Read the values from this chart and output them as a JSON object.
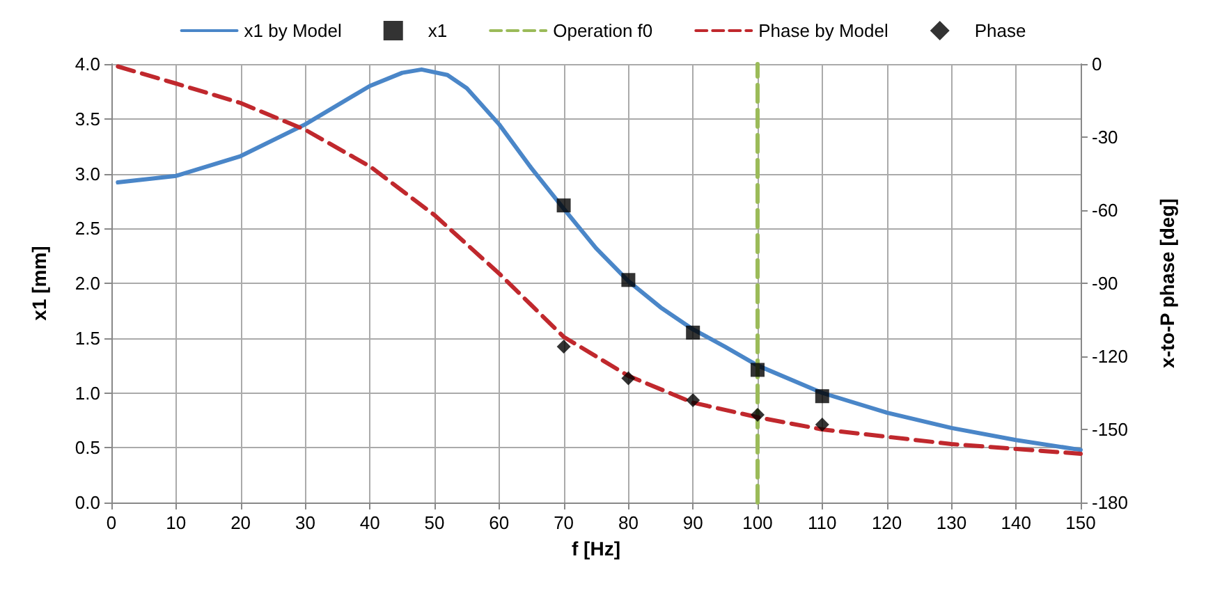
{
  "chart_data": {
    "type": "line",
    "xlabel": "f [Hz]",
    "ylabel": "x1 [mm]",
    "y2label": "x-to-P phase [deg]",
    "xlim": [
      0,
      150
    ],
    "xticks": [
      0,
      10,
      20,
      30,
      40,
      50,
      60,
      70,
      80,
      90,
      100,
      110,
      120,
      130,
      140,
      150
    ],
    "ylim": [
      0,
      4
    ],
    "yticks": [
      {
        "value": 0,
        "label": "0.0"
      },
      0.5,
      {
        "value": 1,
        "label": "1.0"
      },
      1.5,
      {
        "value": 2,
        "label": "2.0"
      },
      2.5,
      {
        "value": 3,
        "label": "3.0"
      },
      3.5,
      {
        "value": 4,
        "label": "4.0"
      }
    ],
    "y2lim": [
      -180,
      0
    ],
    "y2ticks": [
      -180,
      -150,
      -120,
      -90,
      -60,
      -30,
      0
    ],
    "grid": true,
    "legend": "top",
    "series": [
      {
        "name": "x1 by Model",
        "color": "#4a86c8",
        "marker": "none",
        "line_style": "solid",
        "x": [
          1,
          10,
          20,
          30,
          40,
          45,
          48,
          52,
          55,
          60,
          65,
          70,
          75,
          80,
          85,
          90,
          95,
          100,
          110,
          120,
          130,
          140,
          150
        ],
        "values": [
          2.92,
          2.98,
          3.16,
          3.45,
          3.8,
          3.92,
          3.95,
          3.9,
          3.78,
          3.45,
          3.05,
          2.68,
          2.32,
          2.02,
          1.78,
          1.58,
          1.42,
          1.25,
          1.0,
          0.82,
          0.68,
          0.57,
          0.48
        ]
      },
      {
        "name": "x1",
        "type": "scatter",
        "color": "#000000",
        "marker": "square",
        "x": [
          70,
          80,
          90,
          100,
          110
        ],
        "values": [
          2.71,
          2.03,
          1.55,
          1.21,
          0.97
        ]
      },
      {
        "name": "Operation f0",
        "color": "#9bbb59",
        "marker": "none",
        "line_style": "dashed",
        "x": [
          100,
          100
        ],
        "values": [
          0,
          4
        ]
      },
      {
        "name": "Phase by Model",
        "axis": "y2",
        "color": "#c0282d",
        "marker": "none",
        "line_style": "dashed",
        "x": [
          1,
          10,
          20,
          30,
          40,
          50,
          60,
          70,
          80,
          90,
          100,
          110,
          120,
          130,
          140,
          150
        ],
        "values": [
          -1,
          -8,
          -16,
          -27,
          -42,
          -62,
          -86,
          -112,
          -128,
          -139,
          -145,
          -150,
          -153,
          -156,
          -158,
          -160
        ]
      },
      {
        "name": "Phase",
        "type": "scatter",
        "axis": "y2",
        "color": "#000000",
        "marker": "diamond",
        "x": [
          70,
          80,
          90,
          100,
          110
        ],
        "values": [
          -116,
          -129,
          -138,
          -144,
          -148
        ]
      }
    ]
  }
}
